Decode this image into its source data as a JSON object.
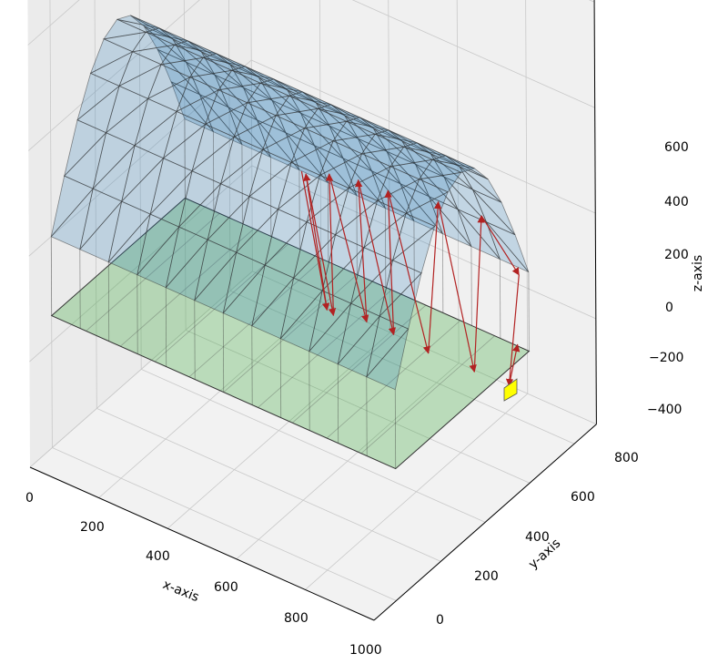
{
  "chart_data": {
    "type": "3d-surface",
    "title": "",
    "xlabel": "x-axis",
    "ylabel": "y-axis",
    "zlabel": "z-axis",
    "xlim": [
      0,
      1000
    ],
    "ylim": [
      -100,
      900
    ],
    "zlim": [
      -400,
      600
    ],
    "x_ticks": [
      "0",
      "200",
      "400",
      "600",
      "800",
      "1000"
    ],
    "y_ticks": [
      "0",
      "200",
      "400",
      "600",
      "800"
    ],
    "z_ticks": [
      "−400",
      "−200",
      "0",
      "200",
      "400",
      "600"
    ],
    "grid": true,
    "panes": "light-gray",
    "surfaces": [
      {
        "name": "",
        "shape": "half-cylinder vault",
        "x_range": [
          0,
          1000
        ],
        "y_range": [
          0,
          600
        ],
        "base_z": 0,
        "crown_z": 300,
        "face_color": "#1f77b4",
        "edge_color": "#333333"
      },
      {
        "name": "",
        "shape": "floor",
        "x_range": [
          0,
          1000
        ],
        "y_range": [
          0,
          600
        ],
        "z": -150,
        "face_color": "#2ca02c",
        "edge_color": "#333333"
      }
    ],
    "ray_segments_2d": [
      [
        [
          0.426,
          0.258
        ],
        [
          0.462,
          0.467
        ]
      ],
      [
        [
          0.462,
          0.467
        ],
        [
          0.432,
          0.262
        ]
      ],
      [
        [
          0.432,
          0.262
        ],
        [
          0.471,
          0.475
        ]
      ],
      [
        [
          0.471,
          0.475
        ],
        [
          0.465,
          0.262
        ]
      ],
      [
        [
          0.465,
          0.262
        ],
        [
          0.518,
          0.485
        ]
      ],
      [
        [
          0.518,
          0.485
        ],
        [
          0.506,
          0.271
        ]
      ],
      [
        [
          0.506,
          0.271
        ],
        [
          0.556,
          0.504
        ]
      ],
      [
        [
          0.556,
          0.504
        ],
        [
          0.548,
          0.287
        ]
      ],
      [
        [
          0.548,
          0.287
        ],
        [
          0.605,
          0.532
        ]
      ],
      [
        [
          0.605,
          0.532
        ],
        [
          0.619,
          0.304
        ]
      ],
      [
        [
          0.619,
          0.304
        ],
        [
          0.67,
          0.56
        ]
      ],
      [
        [
          0.67,
          0.56
        ],
        [
          0.68,
          0.325
        ]
      ],
      [
        [
          0.68,
          0.325
        ],
        [
          0.733,
          0.414
        ]
      ],
      [
        [
          0.733,
          0.414
        ],
        [
          0.719,
          0.581
        ]
      ],
      [
        [
          0.719,
          0.581
        ],
        [
          0.731,
          0.519
        ]
      ]
    ],
    "ray_color": "#b22222",
    "receiver": {
      "color": "#ffff00",
      "position": "near x=1000, y=600, floor level"
    }
  }
}
